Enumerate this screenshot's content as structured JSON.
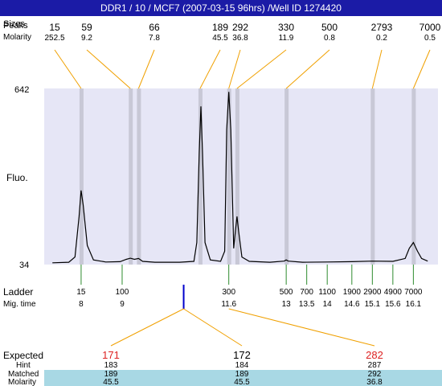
{
  "title": "DDR1 / 10 / MCF7 (2007-03-15 96hrs) /Well ID 1274420",
  "labels": {
    "sizes": "Sizes",
    "peaks": "Peaks",
    "molarity": "Molarity",
    "fluo": "Fluo.",
    "ladder": "Ladder",
    "mig_time": "Mig. time",
    "expected": "Expected",
    "hint": "Hint",
    "matched": "Matched"
  },
  "colors": {
    "title_bar": "#1b1ba6",
    "plot_band": "#e6e6f6",
    "peak_band": "#c8c8d6",
    "connector": "#f0a000",
    "ladder_tick": "#2e8b2e",
    "marker": "#0000cc",
    "expected_red": "#dd2222",
    "highlight_row": "#a8d8e4",
    "trace": "#000000"
  },
  "chart_data": {
    "type": "line",
    "y_axis": {
      "min": 34,
      "max": 642,
      "tick_labels": [
        "642",
        "34"
      ]
    },
    "peaks": [
      {
        "size": "15",
        "molarity": "252.5",
        "mig_time": 8.0
      },
      {
        "size": "59",
        "molarity": "9.2",
        "mig_time": 9.2
      },
      {
        "size": "66",
        "molarity": "7.8",
        "mig_time": 9.4
      },
      {
        "size": "189",
        "molarity": "45.5",
        "mig_time": 10.9
      },
      {
        "size": "292",
        "molarity": "36.8",
        "mig_time": 11.6
      },
      {
        "size": "330",
        "molarity": "11.9",
        "mig_time": 11.8
      },
      {
        "size": "500",
        "molarity": "0.8",
        "mig_time": 13.0
      },
      {
        "size": "2793",
        "molarity": "0.2",
        "mig_time": 15.1
      },
      {
        "size": "7000",
        "molarity": "0.5",
        "mig_time": 16.1
      }
    ],
    "trace": [
      [
        7.3,
        40
      ],
      [
        7.7,
        42
      ],
      [
        7.85,
        60
      ],
      [
        7.95,
        200
      ],
      [
        8.0,
        290
      ],
      [
        8.05,
        240
      ],
      [
        8.15,
        100
      ],
      [
        8.3,
        50
      ],
      [
        8.6,
        43
      ],
      [
        8.95,
        44
      ],
      [
        9.1,
        52
      ],
      [
        9.2,
        56
      ],
      [
        9.3,
        52
      ],
      [
        9.4,
        55
      ],
      [
        9.5,
        45
      ],
      [
        9.8,
        42
      ],
      [
        10.4,
        42
      ],
      [
        10.75,
        45
      ],
      [
        10.82,
        110
      ],
      [
        10.88,
        420
      ],
      [
        10.92,
        580
      ],
      [
        10.96,
        420
      ],
      [
        11.02,
        110
      ],
      [
        11.15,
        50
      ],
      [
        11.4,
        45
      ],
      [
        11.5,
        80
      ],
      [
        11.55,
        500
      ],
      [
        11.6,
        630
      ],
      [
        11.65,
        500
      ],
      [
        11.72,
        90
      ],
      [
        11.76,
        150
      ],
      [
        11.8,
        200
      ],
      [
        11.84,
        150
      ],
      [
        11.92,
        60
      ],
      [
        12.1,
        45
      ],
      [
        12.6,
        42
      ],
      [
        12.95,
        46
      ],
      [
        13.0,
        50
      ],
      [
        13.05,
        46
      ],
      [
        13.4,
        42
      ],
      [
        14.0,
        43
      ],
      [
        14.6,
        44
      ],
      [
        15.1,
        46
      ],
      [
        15.6,
        45
      ],
      [
        15.9,
        55
      ],
      [
        16.0,
        90
      ],
      [
        16.1,
        110
      ],
      [
        16.2,
        80
      ],
      [
        16.3,
        55
      ],
      [
        16.45,
        46
      ]
    ],
    "ladder": [
      {
        "size": "15",
        "mig_time": "8",
        "t": 8.0
      },
      {
        "size": "100",
        "mig_time": "9",
        "t": 9.0
      },
      {
        "size": "300",
        "mig_time": "11.6",
        "t": 11.6
      },
      {
        "size": "500",
        "mig_time": "13",
        "t": 13.0
      },
      {
        "size": "700",
        "mig_time": "13.5",
        "t": 13.5
      },
      {
        "size": "1100",
        "mig_time": "14",
        "t": 14.0
      },
      {
        "size": "1900",
        "mig_time": "14.6",
        "t": 14.6
      },
      {
        "size": "2900",
        "mig_time": "15.1",
        "t": 15.1
      },
      {
        "size": "4900",
        "mig_time": "15.6",
        "t": 15.6
      },
      {
        "size": "7000",
        "mig_time": "16.1",
        "t": 16.1
      }
    ],
    "marker_time": 10.5,
    "expected": [
      {
        "expected": "171",
        "hint": "183",
        "matched": "189",
        "molarity": "45.5"
      },
      {
        "expected": "172",
        "hint": "184",
        "matched": "189",
        "molarity": "45.5"
      },
      {
        "expected": "282",
        "hint": "287",
        "matched": "292",
        "molarity": "36.8"
      }
    ]
  }
}
